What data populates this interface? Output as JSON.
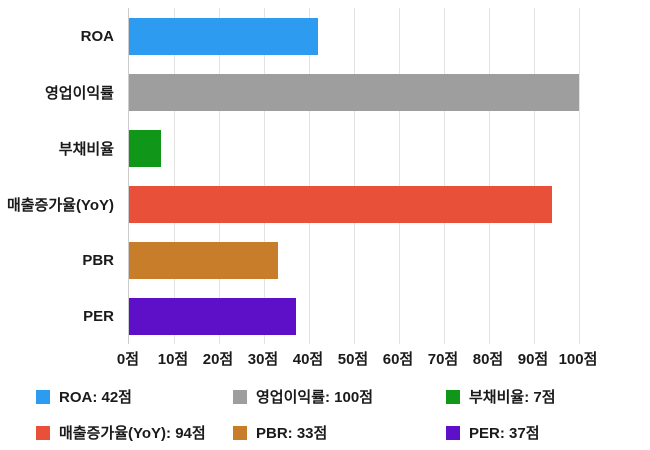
{
  "chart_data": {
    "type": "bar",
    "orientation": "horizontal",
    "title": "",
    "categories": [
      "ROA",
      "영업이익률",
      "부채비율",
      "매출증가율(YoY)",
      "PBR",
      "PER"
    ],
    "values": [
      42,
      100,
      7,
      94,
      33,
      37
    ],
    "colors": [
      "#2D9BF0",
      "#9E9E9E",
      "#109618",
      "#E8503A",
      "#C87D2B",
      "#5E10C8"
    ],
    "unit": "점",
    "xlim": [
      0,
      100
    ],
    "x_ticks": [
      "0점",
      "10점",
      "20점",
      "30점",
      "40점",
      "50점",
      "60점",
      "70점",
      "80점",
      "90점",
      "100점"
    ],
    "grid": true,
    "legend_position": "bottom"
  },
  "legend": {
    "items": [
      {
        "label": "ROA: 42점",
        "color": "#2D9BF0"
      },
      {
        "label": "영업이익률: 100점",
        "color": "#9E9E9E"
      },
      {
        "label": "부채비율: 7점",
        "color": "#109618"
      },
      {
        "label": "매출증가율(YoY): 94점",
        "color": "#E8503A"
      },
      {
        "label": "PBR: 33점",
        "color": "#C87D2B"
      },
      {
        "label": "PER: 37점",
        "color": "#5E10C8"
      }
    ]
  }
}
